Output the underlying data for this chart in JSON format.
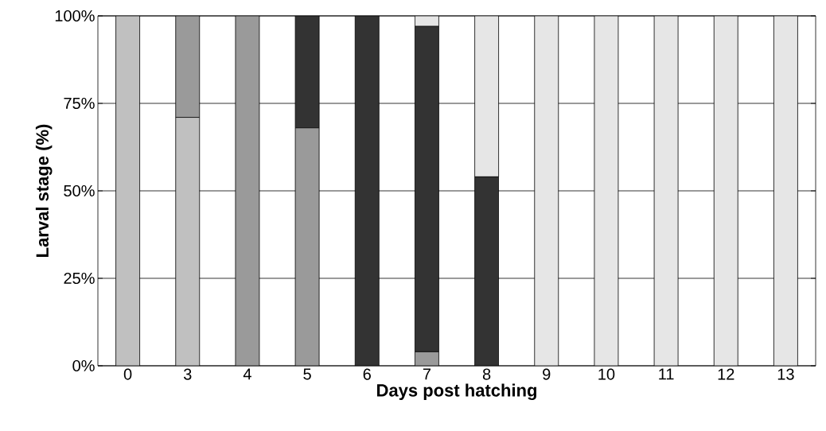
{
  "chart_data": {
    "type": "bar",
    "stacked": true,
    "xlabel": "Days post hatching",
    "ylabel": "Larval stage (%)",
    "categories": [
      "0",
      "3",
      "4",
      "5",
      "6",
      "7",
      "8",
      "9",
      "10",
      "11",
      "12",
      "13"
    ],
    "series": [
      {
        "color": "#c0c0c0",
        "values": [
          100,
          71,
          0,
          0,
          0,
          0,
          0,
          0,
          0,
          0,
          0,
          0
        ]
      },
      {
        "color": "#9a9a9a",
        "values": [
          0,
          29,
          100,
          68,
          0,
          4,
          0,
          0,
          0,
          0,
          0,
          0
        ]
      },
      {
        "color": "#333333",
        "values": [
          0,
          0,
          0,
          32,
          100,
          93,
          54,
          0,
          0,
          0,
          0,
          0
        ]
      },
      {
        "color": "#e6e6e6",
        "values": [
          0,
          0,
          0,
          0,
          0,
          3,
          46,
          100,
          100,
          100,
          100,
          100
        ]
      }
    ],
    "ylim": [
      0,
      100
    ],
    "yticks": [
      {
        "value": 0,
        "label": "0%"
      },
      {
        "value": 25,
        "label": "25%"
      },
      {
        "value": 50,
        "label": "50%"
      },
      {
        "value": 75,
        "label": "75%"
      },
      {
        "value": 100,
        "label": "100%"
      }
    ],
    "grid": "y"
  }
}
